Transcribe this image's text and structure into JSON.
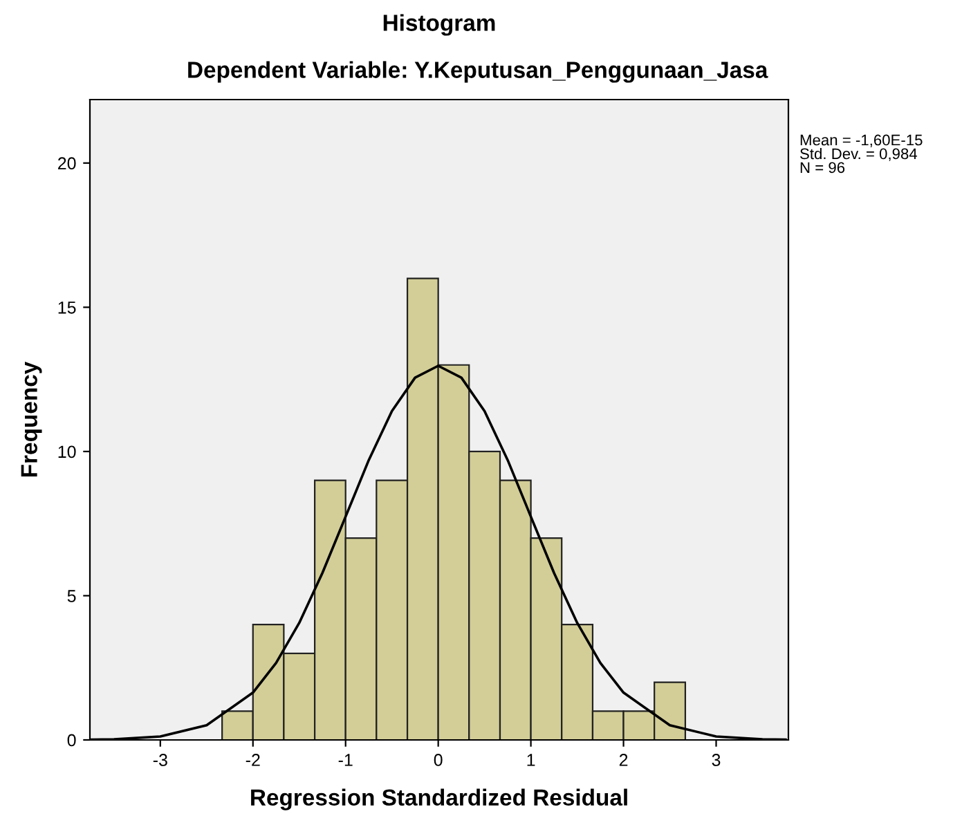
{
  "chart_data": {
    "type": "histogram",
    "title": "Histogram",
    "subtitle": "Dependent Variable: Y.Keputusan_Penggunaan_Jasa",
    "xlabel": "Regression Standardized Residual",
    "ylabel": "Frequency",
    "bins": [
      -2.333,
      -2.0,
      -1.667,
      -1.333,
      -1.0,
      -0.667,
      -0.333,
      0.0,
      0.333,
      0.667,
      1.0,
      1.333,
      1.667,
      2.0,
      2.333,
      2.667
    ],
    "values": [
      1,
      4,
      3,
      9,
      7,
      9,
      16,
      13,
      10,
      9,
      7,
      4,
      1,
      1,
      2
    ],
    "color": "#d3ce97",
    "series": [
      {
        "type": "line",
        "color": "#000000",
        "x": [
          -3.75,
          -3.5,
          -3.0,
          -2.5,
          -2.0,
          -1.75,
          -1.5,
          -1.25,
          -1.0,
          -0.75,
          -0.5,
          -0.25,
          0.0,
          0.25,
          0.5,
          0.75,
          1.0,
          1.25,
          1.5,
          1.75,
          2.0,
          2.5,
          3.0,
          3.5,
          3.75
        ],
        "values": [
          0.01,
          0.02,
          0.12,
          0.51,
          1.64,
          2.67,
          4.06,
          5.79,
          7.74,
          9.7,
          11.4,
          12.56,
          12.97,
          12.56,
          11.4,
          9.7,
          7.74,
          5.79,
          4.06,
          2.67,
          1.64,
          0.51,
          0.12,
          0.02,
          0.01
        ]
      }
    ],
    "annotations": [
      "Mean = -1,60E-15\nStd. Dev. = 0,984\nN = 96"
    ],
    "xlim": [
      -3.76,
      3.78
    ],
    "ylim": [
      0,
      22.2
    ],
    "xticks": [
      -3,
      -2,
      -1,
      0,
      1,
      2,
      3
    ],
    "yticks": [
      0,
      5,
      10,
      15,
      20
    ],
    "grid": false,
    "legend": false
  }
}
